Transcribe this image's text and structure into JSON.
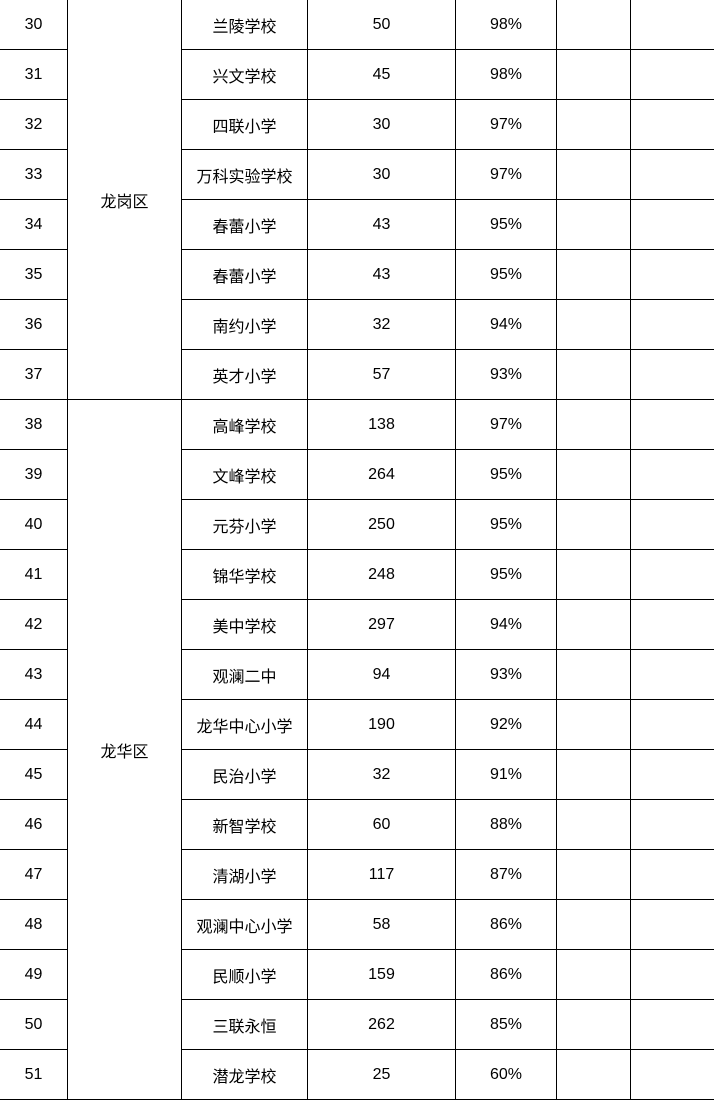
{
  "groups": [
    {
      "district": "龙岗区",
      "rows": [
        {
          "no": "30",
          "school": "兰陵学校",
          "count": "50",
          "rate": "98%"
        },
        {
          "no": "31",
          "school": "兴文学校",
          "count": "45",
          "rate": "98%"
        },
        {
          "no": "32",
          "school": "四联小学",
          "count": "30",
          "rate": "97%"
        },
        {
          "no": "33",
          "school": "万科实验学校",
          "count": "30",
          "rate": "97%"
        },
        {
          "no": "34",
          "school": "春蕾小学",
          "count": "43",
          "rate": "95%"
        },
        {
          "no": "35",
          "school": "春蕾小学",
          "count": "43",
          "rate": "95%"
        },
        {
          "no": "36",
          "school": "南约小学",
          "count": "32",
          "rate": "94%"
        },
        {
          "no": "37",
          "school": "英才小学",
          "count": "57",
          "rate": "93%"
        }
      ]
    },
    {
      "district": "龙华区",
      "rows": [
        {
          "no": "38",
          "school": "高峰学校",
          "count": "138",
          "rate": "97%"
        },
        {
          "no": "39",
          "school": "文峰学校",
          "count": "264",
          "rate": "95%"
        },
        {
          "no": "40",
          "school": "元芬小学",
          "count": "250",
          "rate": "95%"
        },
        {
          "no": "41",
          "school": "锦华学校",
          "count": "248",
          "rate": "95%"
        },
        {
          "no": "42",
          "school": "美中学校",
          "count": "297",
          "rate": "94%"
        },
        {
          "no": "43",
          "school": "观澜二中",
          "count": "94",
          "rate": "93%"
        },
        {
          "no": "44",
          "school": "龙华中心小学",
          "count": "190",
          "rate": "92%"
        },
        {
          "no": "45",
          "school": "民治小学",
          "count": "32",
          "rate": "91%"
        },
        {
          "no": "46",
          "school": "新智学校",
          "count": "60",
          "rate": "88%"
        },
        {
          "no": "47",
          "school": "清湖小学",
          "count": "117",
          "rate": "87%"
        },
        {
          "no": "48",
          "school": "观澜中心小学",
          "count": "58",
          "rate": "86%"
        },
        {
          "no": "49",
          "school": "民顺小学",
          "count": "159",
          "rate": "86%"
        },
        {
          "no": "50",
          "school": "三联永恒",
          "count": "262",
          "rate": "85%"
        },
        {
          "no": "51",
          "school": "潜龙学校",
          "count": "25",
          "rate": "60%"
        }
      ]
    }
  ]
}
